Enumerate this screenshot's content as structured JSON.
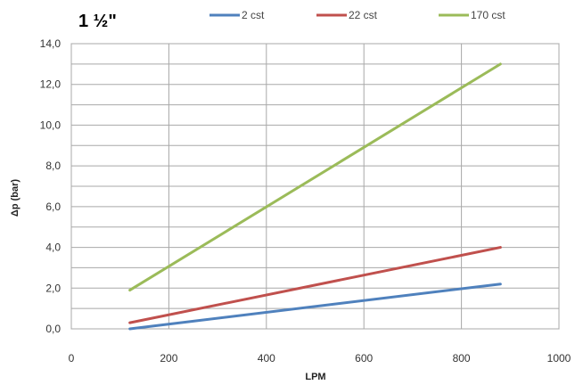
{
  "chart_data": {
    "type": "line",
    "title": "1 ½\"",
    "xlabel": "LPM",
    "ylabel": "Δp (bar)",
    "xlim": [
      0,
      1000
    ],
    "ylim": [
      0,
      14
    ],
    "x_ticks": [
      0,
      200,
      400,
      600,
      800,
      1000
    ],
    "x_tick_labels": [
      "0",
      "200",
      "400",
      "600",
      "800",
      "1000"
    ],
    "y_ticks": [
      0,
      2,
      4,
      6,
      8,
      10,
      12,
      14
    ],
    "y_tick_labels": [
      "0,0",
      "2,0",
      "4,0",
      "6,0",
      "8,0",
      "10,0",
      "12,0",
      "14,0"
    ],
    "grid": true,
    "legend_position": "top",
    "series": [
      {
        "name": "2 cst",
        "color": "#4f81bd",
        "x": [
          120,
          880
        ],
        "y": [
          0.0,
          2.2
        ]
      },
      {
        "name": "22 cst",
        "color": "#c0504d",
        "x": [
          120,
          880
        ],
        "y": [
          0.3,
          4.0
        ]
      },
      {
        "name": "170 cst",
        "color": "#9bbb59",
        "x": [
          120,
          880
        ],
        "y": [
          1.9,
          13.0
        ]
      }
    ]
  }
}
